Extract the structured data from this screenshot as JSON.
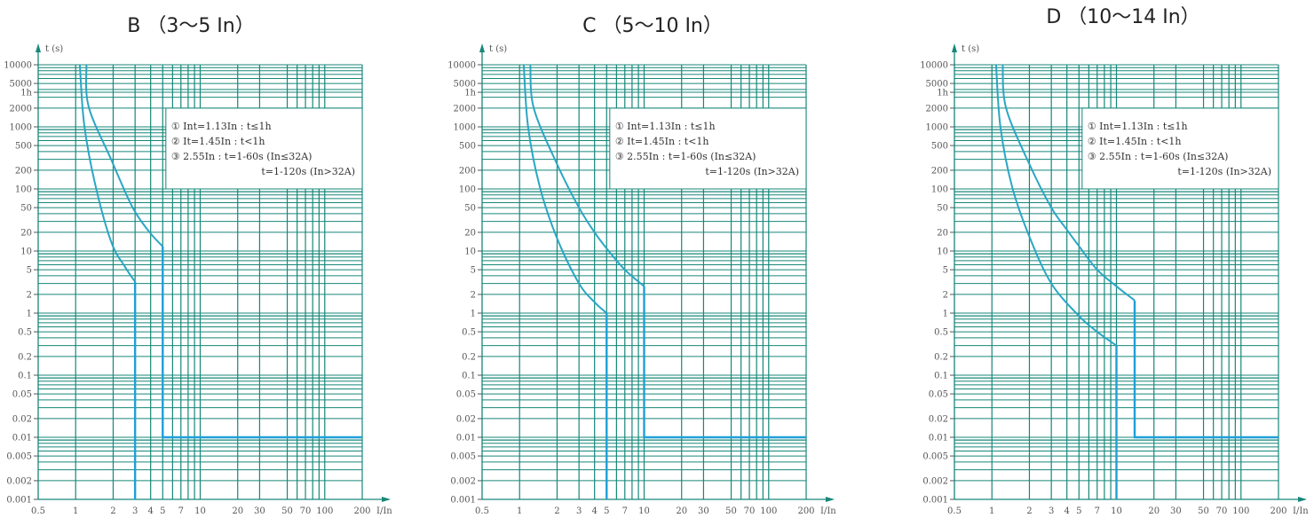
{
  "colors": {
    "grid": "#17877a",
    "curve": "#2aa6c4",
    "trip": "#1f9fd8",
    "axis_arrow": "#17877a"
  },
  "chart_data": [
    {
      "type": "line",
      "title": "B （3～5 In）",
      "xlabel": "I/In",
      "ylabel": "t (s)",
      "xscale": "log",
      "yscale": "log",
      "xlim": [
        0.5,
        200
      ],
      "ylim": [
        0.001,
        10000
      ],
      "xticks": [
        "0.5",
        "1",
        "2",
        "3",
        "4",
        "5",
        "7",
        "10",
        "20",
        "30",
        "50",
        "70",
        "100",
        "200"
      ],
      "yticks": [
        "10000",
        "5000",
        "1h",
        "2000",
        "1000",
        "500",
        "200",
        "100",
        "50",
        "20",
        "10",
        "5",
        "2",
        "1",
        "0.5",
        "0.2",
        "0.1",
        "0.05",
        "0.02",
        "0.01",
        "0.005",
        "0.002",
        "0.001"
      ],
      "legend": [
        "① Int=1.13In : t≤1h",
        "② It=1.45In : t<1h",
        "③ 2.55In : t=1-60s (In≤32A)",
        "t=1-120s (In>32A)"
      ],
      "series": [
        {
          "name": "lower",
          "x": [
            1.08,
            1.17,
            1.43,
            1.93,
            2.5,
            3,
            3,
            3
          ],
          "y": [
            10000,
            1100,
            122,
            14,
            5.5,
            3.2,
            1,
            0.001
          ]
        },
        {
          "name": "upper",
          "x": [
            1.22,
            1.27,
            1.93,
            2.84,
            3.85,
            5,
            5,
            200
          ],
          "y": [
            10000,
            2130,
            296,
            52,
            21,
            11.8,
            0.01,
            0.01
          ]
        }
      ]
    },
    {
      "type": "line",
      "title": "C （5～10 In）",
      "xlabel": "I/In",
      "ylabel": "t (s)",
      "xscale": "log",
      "yscale": "log",
      "xlim": [
        0.5,
        200
      ],
      "ylim": [
        0.001,
        10000
      ],
      "xticks": [
        "0.5",
        "1",
        "2",
        "3",
        "4",
        "5",
        "7",
        "10",
        "20",
        "30",
        "50",
        "70",
        "100",
        "200"
      ],
      "yticks": [
        "10000",
        "5000",
        "1h",
        "2000",
        "1000",
        "500",
        "200",
        "100",
        "50",
        "20",
        "10",
        "5",
        "2",
        "1",
        "0.5",
        "0.2",
        "0.1",
        "0.05",
        "0.02",
        "0.01",
        "0.005",
        "0.002",
        "0.001"
      ],
      "legend": [
        "① Int=1.13In : t≤1h",
        "② It=1.45In : t<1h",
        "③ 2.55In : t=1-60s (In≤32A)",
        "t=1-120s (In>32A)"
      ],
      "series": [
        {
          "name": "lower",
          "x": [
            1.08,
            1.17,
            1.45,
            2,
            3,
            4,
            5,
            5
          ],
          "y": [
            10000,
            1000,
            110,
            16,
            3,
            1.5,
            1,
            0.001
          ]
        },
        {
          "name": "upper",
          "x": [
            1.22,
            1.3,
            2,
            3,
            4,
            5,
            7,
            10,
            10,
            200
          ],
          "y": [
            10000,
            2000,
            250,
            50,
            20,
            11,
            5,
            2.7,
            0.01,
            0.01
          ]
        }
      ]
    },
    {
      "type": "line",
      "title": "D （10～14 In）",
      "xlabel": "I/In",
      "ylabel": "t (s)",
      "xscale": "log",
      "yscale": "log",
      "xlim": [
        0.5,
        200
      ],
      "ylim": [
        0.001,
        10000
      ],
      "xticks": [
        "0.5",
        "1",
        "2",
        "3",
        "4",
        "5",
        "7",
        "10",
        "20",
        "30",
        "50",
        "70",
        "100",
        "200"
      ],
      "yticks": [
        "10000",
        "5000",
        "1h",
        "2000",
        "1000",
        "500",
        "200",
        "100",
        "50",
        "20",
        "10",
        "5",
        "2",
        "1",
        "0.5",
        "0.2",
        "0.1",
        "0.05",
        "0.02",
        "0.01",
        "0.005",
        "0.002",
        "0.001"
      ],
      "legend": [
        "① Int=1.13In : t≤1h",
        "② It=1.45In : t<1h",
        "③ 2.55In : t=1-60s (In≤32A)",
        "t=1-120s (In>32A)"
      ],
      "series": [
        {
          "name": "lower",
          "x": [
            1.08,
            1.17,
            1.45,
            2,
            3,
            5,
            7,
            10,
            10
          ],
          "y": [
            10000,
            1000,
            110,
            17,
            3,
            0.9,
            0.5,
            0.3,
            0.001
          ]
        },
        {
          "name": "upper",
          "x": [
            1.22,
            1.3,
            2,
            3,
            4,
            5,
            7,
            10,
            14,
            14,
            200
          ],
          "y": [
            10000,
            2000,
            250,
            50,
            22,
            12,
            5,
            2.7,
            1.6,
            0.01,
            0.01
          ]
        }
      ]
    }
  ]
}
